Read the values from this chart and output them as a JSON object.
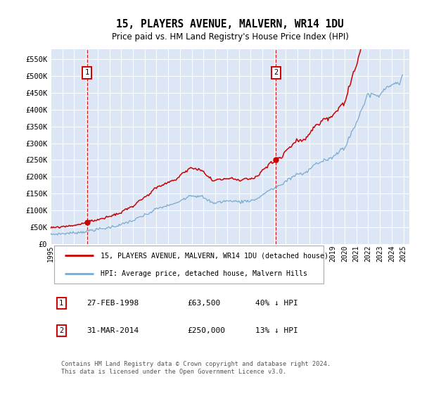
{
  "title": "15, PLAYERS AVENUE, MALVERN, WR14 1DU",
  "subtitle": "Price paid vs. HM Land Registry's House Price Index (HPI)",
  "sale1_label": "27-FEB-1998",
  "sale1_price_str": "£63,500",
  "sale1_pct": "40% ↓ HPI",
  "sale2_label": "31-MAR-2014",
  "sale2_price_str": "£250,000",
  "sale2_pct": "13% ↓ HPI",
  "hpi_color": "#7aaad0",
  "property_color": "#cc0000",
  "legend_property": "15, PLAYERS AVENUE, MALVERN, WR14 1DU (detached house)",
  "legend_hpi": "HPI: Average price, detached house, Malvern Hills",
  "footer": "Contains HM Land Registry data © Crown copyright and database right 2024.\nThis data is licensed under the Open Government Licence v3.0.",
  "ytick_labels": [
    "£0",
    "£50K",
    "£100K",
    "£150K",
    "£200K",
    "£250K",
    "£300K",
    "£350K",
    "£400K",
    "£450K",
    "£500K",
    "£550K"
  ],
  "yticks": [
    0,
    50000,
    100000,
    150000,
    200000,
    250000,
    300000,
    350000,
    400000,
    450000,
    500000,
    550000
  ],
  "ylim": [
    0,
    580000
  ],
  "background_color": "#dce6f5"
}
